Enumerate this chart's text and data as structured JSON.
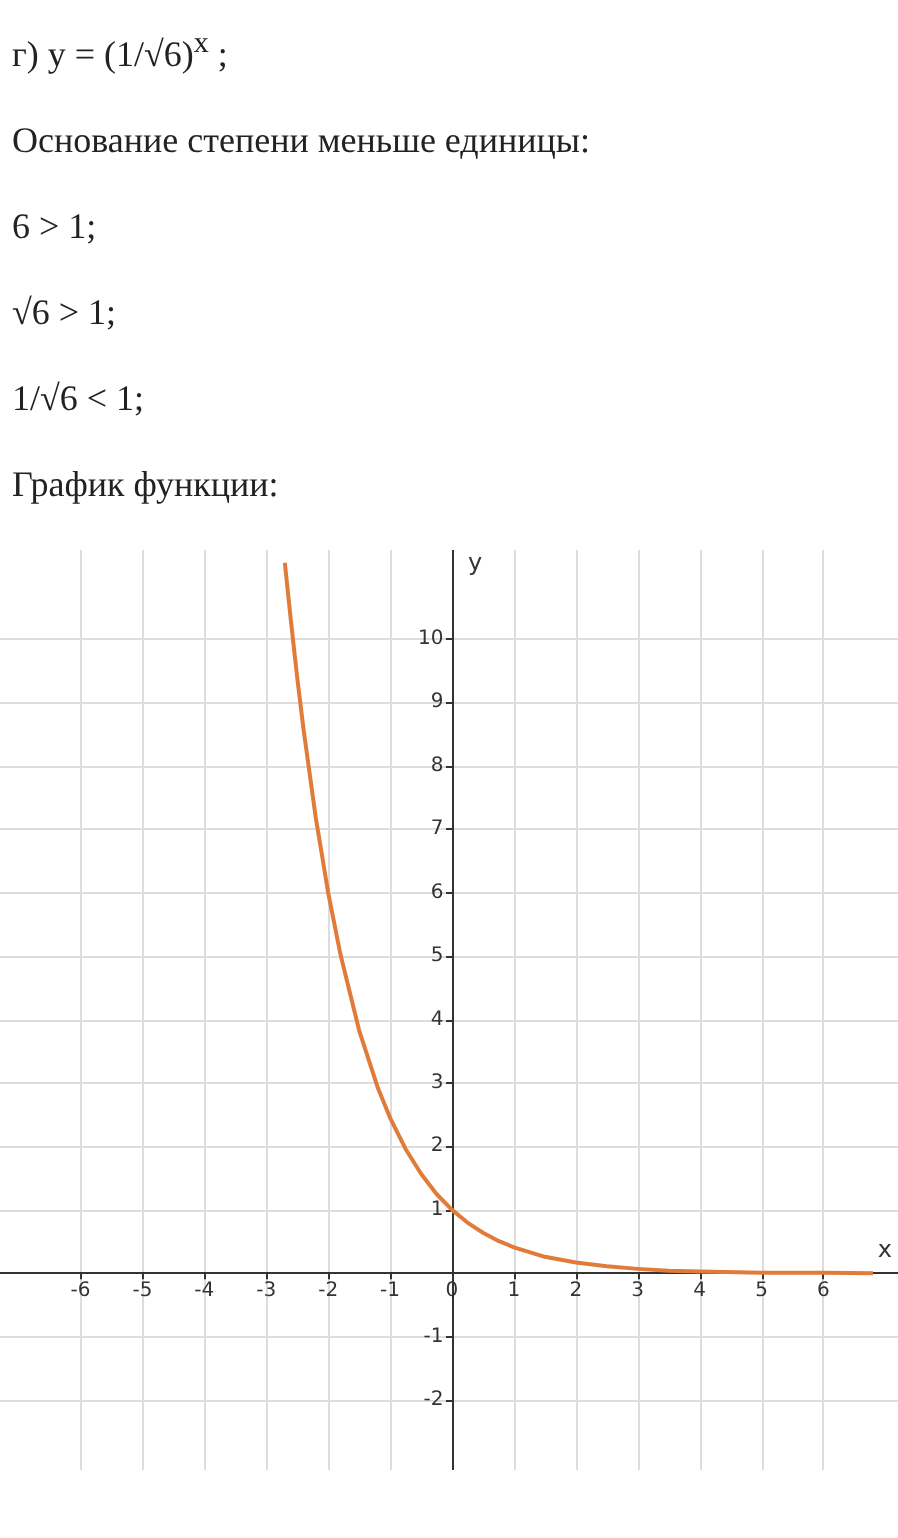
{
  "chart_data": {
    "type": "line",
    "title": "График функции:",
    "annotations": [
      "г) y = (1/√6)$^{x}$ ;",
      "Основание степени меньше единицы:",
      "6 > 1;",
      "√6 > 1;",
      "1/√6 < 1;"
    ],
    "xlabel": "x",
    "ylabel": "y",
    "series": [
      {
        "color": "#e07b39",
        "x": [
          -2.7,
          -2.6,
          -2.5,
          -2.4,
          -2.2,
          -2,
          -1.8,
          -1.5,
          -1.2,
          -1,
          -0.75,
          -0.5,
          -0.25,
          0,
          0.25,
          0.5,
          0.75,
          1,
          1.5,
          2,
          2.5,
          3,
          3.5,
          4,
          5,
          6,
          6.8
        ],
        "values": [
          11.2,
          10.27,
          9.39,
          8.59,
          7.18,
          6,
          5.02,
          3.83,
          2.93,
          2.45,
          1.96,
          1.57,
          1.25,
          1,
          0.8,
          0.64,
          0.51,
          0.41,
          0.26,
          0.17,
          0.11,
          0.07,
          0.04,
          0.03,
          0.01,
          0.01,
          0
        ]
      }
    ],
    "xlim": [
      -7.3,
      7.2
    ],
    "ylim": [
      -3.1,
      11.4
    ],
    "xticks": [
      -6,
      -5,
      -4,
      -3,
      -2,
      -1,
      0,
      1,
      2,
      3,
      4,
      5,
      6
    ],
    "yticks": [
      -2,
      -1,
      1,
      2,
      3,
      4,
      5,
      6,
      7,
      8,
      9,
      10
    ],
    "grid": true,
    "marker": "none",
    "line_style": "solid"
  }
}
